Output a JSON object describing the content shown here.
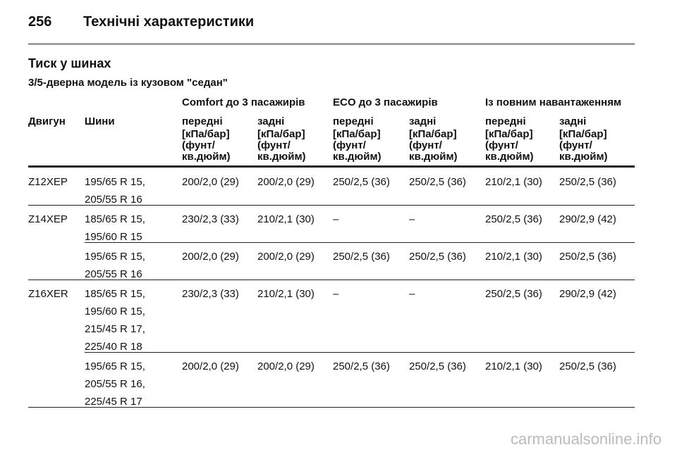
{
  "header": {
    "page_number": "256",
    "title": "Технічні характеристики"
  },
  "section": {
    "title": "Тиск у шинах",
    "subtitle": "3/5-дверна модель із кузовом \"седан\""
  },
  "table": {
    "groups": [
      "Comfort до 3 пасажирів",
      "ECO до 3 пасажирів",
      "Із повним навантаженням"
    ],
    "columns": [
      "Двигун",
      "Шини",
      "передні",
      "задні",
      "передні",
      "задні",
      "передні",
      "задні"
    ],
    "units": [
      [
        "[кПа/бар]",
        "(фунт/",
        "кв.дюйм)"
      ],
      [
        "[кПа/бар]",
        "(фунт/",
        "кв.дюйм)"
      ],
      [
        "[кПа/бар]",
        "(фунт/",
        "кв.дюйм)"
      ],
      [
        "[кПа/бар]",
        "(фунт/",
        "кв.дюйм)"
      ],
      [
        "[кПа/бар]",
        "(фунт/",
        "кв.дюйм)"
      ],
      [
        "[кПа/бар]",
        "(фунт/",
        "кв.дюйм)"
      ]
    ],
    "rows": [
      {
        "engine": "Z12XEP",
        "tires": [
          "195/65 R 15,",
          "205/55 R 16"
        ],
        "values": [
          "200/2,0 (29)",
          "200/2,0 (29)",
          "250/2,5 (36)",
          "250/2,5 (36)",
          "210/2,1 (30)",
          "250/2,5 (36)"
        ]
      },
      {
        "engine": "Z14XEP",
        "tires": [
          "185/65 R 15,",
          "195/60 R 15"
        ],
        "values": [
          "230/2,3 (33)",
          "210/2,1 (30)",
          "–",
          "–",
          "250/2,5 (36)",
          "290/2,9 (42)"
        ]
      },
      {
        "tires": [
          "195/65 R 15,",
          "205/55 R 16"
        ],
        "values": [
          "200/2,0 (29)",
          "200/2,0 (29)",
          "250/2,5 (36)",
          "250/2,5 (36)",
          "210/2,1 (30)",
          "250/2,5 (36)"
        ]
      },
      {
        "engine": "Z16XER",
        "tires": [
          "185/65 R 15,",
          "195/60 R 15,",
          "215/45 R 17,",
          "225/40 R 18"
        ],
        "values": [
          "230/2,3 (33)",
          "210/2,1 (30)",
          "–",
          "–",
          "250/2,5 (36)",
          "290/2,9 (42)"
        ]
      },
      {
        "tires": [
          "195/65 R 15,",
          "205/55 R 16,",
          "225/45 R 17"
        ],
        "values": [
          "200/2,0 (29)",
          "200/2,0 (29)",
          "250/2,5 (36)",
          "250/2,5 (36)",
          "210/2,1 (30)",
          "250/2,5 (36)"
        ]
      }
    ]
  },
  "watermark": "carmanualsonline.info"
}
